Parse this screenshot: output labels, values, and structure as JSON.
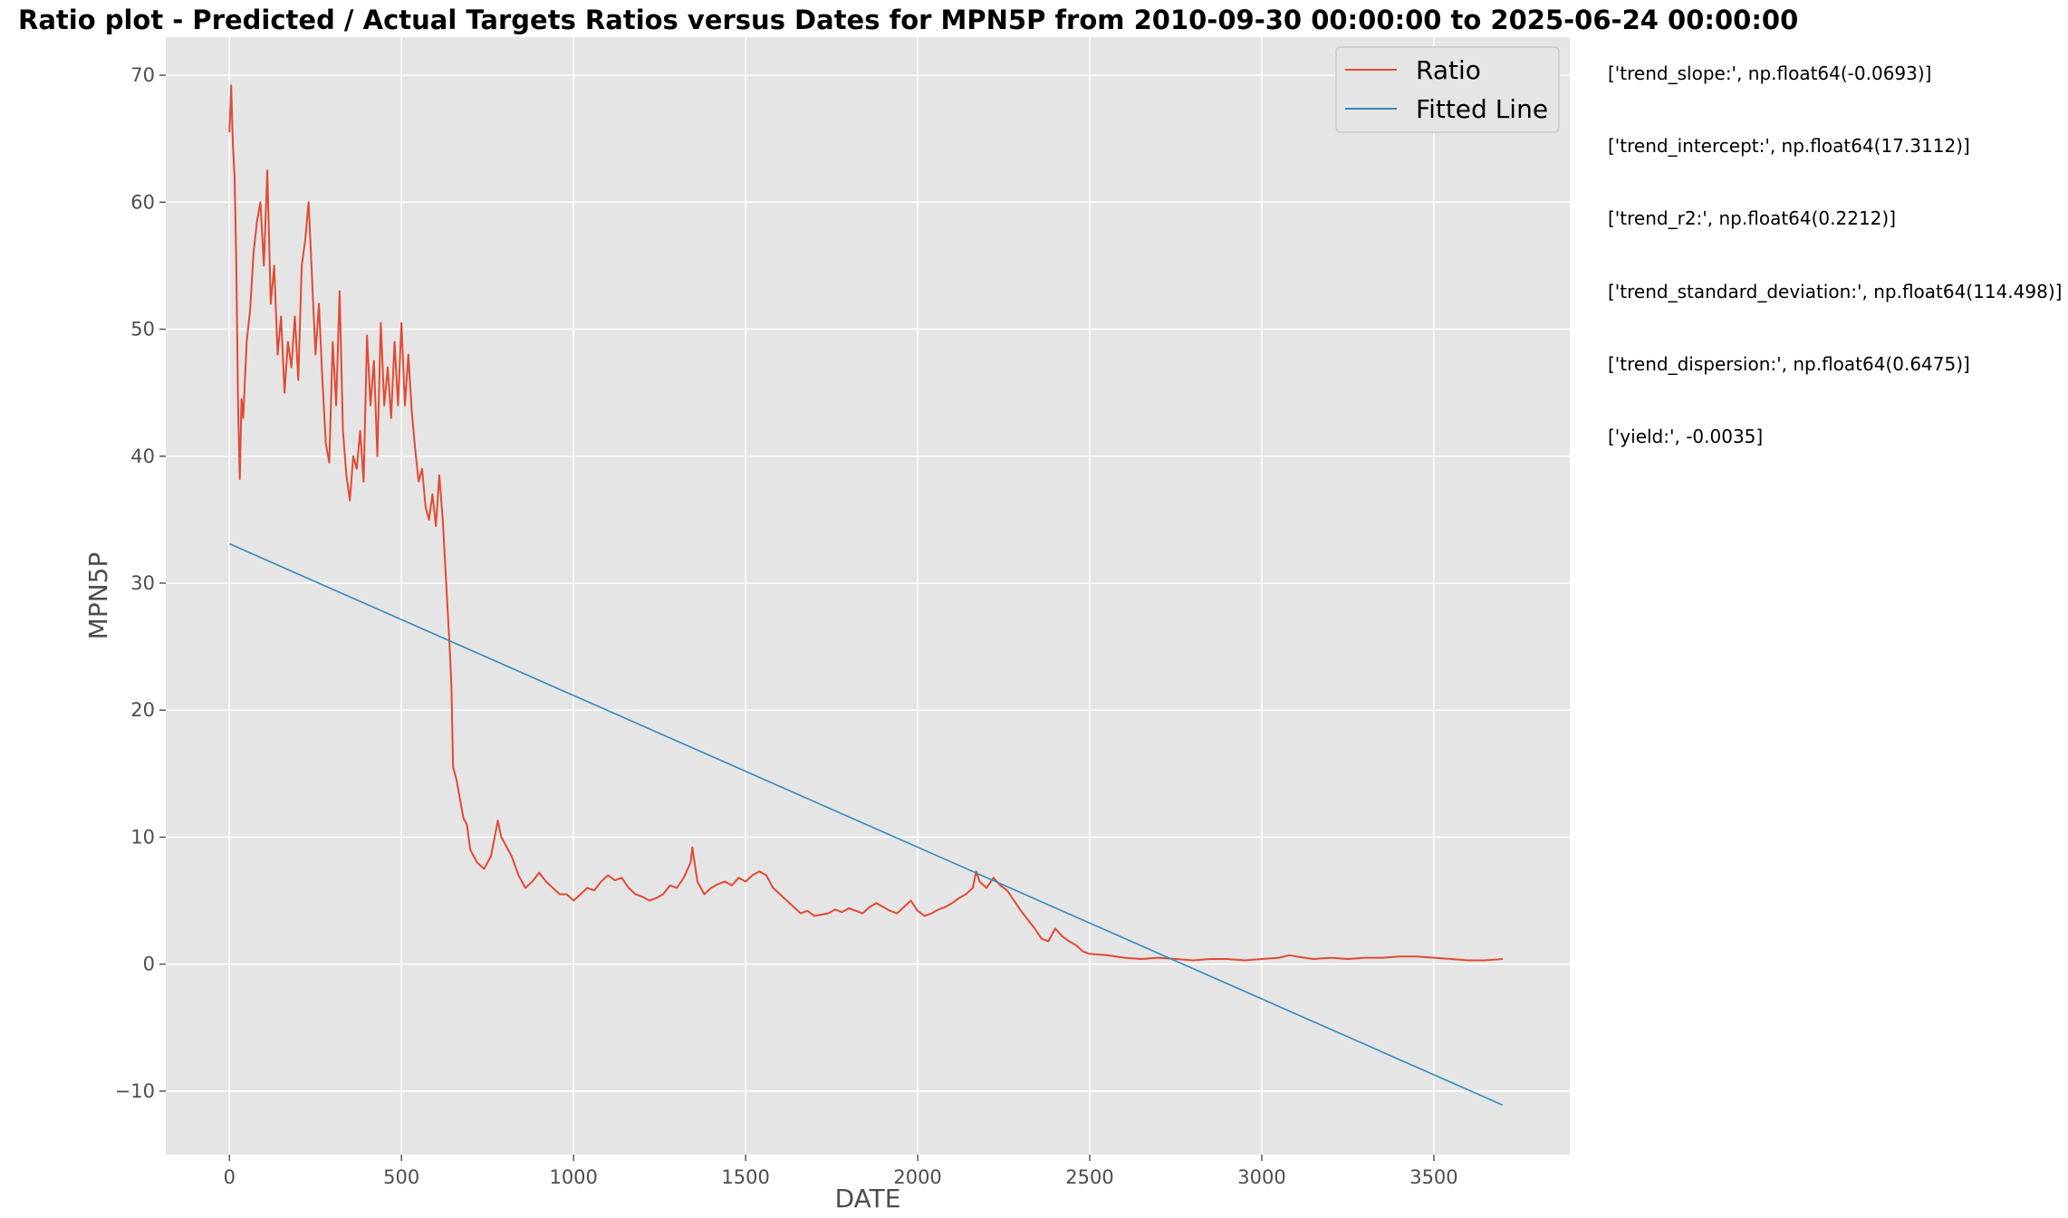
{
  "chart_data": {
    "type": "line",
    "title": "Ratio plot - Predicted / Actual Targets Ratios versus Dates for MPN5P from 2010-09-30 00:00:00 to 2025-06-24 00:00:00",
    "xlabel": "DATE",
    "ylabel": "MPN5P",
    "xlim": [
      -185,
      3895
    ],
    "ylim": [
      -15,
      73
    ],
    "xticks": [
      0,
      500,
      1000,
      1500,
      2000,
      2500,
      3000,
      3500
    ],
    "yticks": [
      -10,
      0,
      10,
      20,
      30,
      40,
      50,
      60,
      70
    ],
    "grid": true,
    "legend_position": "top-right",
    "series": [
      {
        "name": "Ratio",
        "color": "#e24a33",
        "x": [
          0,
          5,
          10,
          15,
          20,
          25,
          30,
          35,
          40,
          50,
          60,
          70,
          80,
          90,
          100,
          110,
          120,
          130,
          140,
          150,
          160,
          170,
          180,
          190,
          200,
          210,
          220,
          230,
          240,
          250,
          260,
          270,
          280,
          290,
          300,
          310,
          320,
          330,
          340,
          350,
          360,
          370,
          380,
          390,
          400,
          410,
          420,
          430,
          440,
          450,
          460,
          470,
          480,
          490,
          500,
          510,
          520,
          530,
          540,
          550,
          560,
          570,
          580,
          590,
          600,
          610,
          620,
          630,
          640,
          645,
          650,
          660,
          670,
          680,
          690,
          700,
          720,
          740,
          760,
          780,
          790,
          800,
          820,
          840,
          860,
          880,
          900,
          920,
          940,
          960,
          980,
          1000,
          1020,
          1040,
          1060,
          1080,
          1100,
          1120,
          1140,
          1160,
          1180,
          1200,
          1220,
          1240,
          1260,
          1280,
          1300,
          1320,
          1340,
          1345,
          1360,
          1380,
          1400,
          1420,
          1440,
          1460,
          1480,
          1500,
          1520,
          1540,
          1560,
          1580,
          1600,
          1620,
          1640,
          1660,
          1680,
          1700,
          1720,
          1740,
          1760,
          1780,
          1800,
          1820,
          1840,
          1860,
          1880,
          1900,
          1920,
          1940,
          1960,
          1980,
          2000,
          2020,
          2040,
          2060,
          2080,
          2100,
          2120,
          2140,
          2160,
          2170,
          2180,
          2200,
          2220,
          2240,
          2260,
          2280,
          2300,
          2320,
          2340,
          2360,
          2380,
          2400,
          2420,
          2440,
          2460,
          2480,
          2500,
          2550,
          2600,
          2650,
          2700,
          2750,
          2800,
          2850,
          2900,
          2950,
          3000,
          3050,
          3080,
          3100,
          3150,
          3200,
          3250,
          3300,
          3350,
          3400,
          3450,
          3500,
          3550,
          3600,
          3650,
          3700
        ],
        "values": [
          65.5,
          69.2,
          64.5,
          62.0,
          55.0,
          44.0,
          38.2,
          44.5,
          43.0,
          49.0,
          51.5,
          56.0,
          58.5,
          60.0,
          55.0,
          62.5,
          52.0,
          55.0,
          48.0,
          51.0,
          45.0,
          49.0,
          47.0,
          51.0,
          46.0,
          55.0,
          57.0,
          60.0,
          54.0,
          48.0,
          52.0,
          46.0,
          41.0,
          39.5,
          49.0,
          44.0,
          53.0,
          42.0,
          38.5,
          36.5,
          40.0,
          39.0,
          42.0,
          38.0,
          49.5,
          44.0,
          47.5,
          40.0,
          50.5,
          44.0,
          47.0,
          43.0,
          49.0,
          44.0,
          50.5,
          44.0,
          48.0,
          43.5,
          40.5,
          38.0,
          39.0,
          36.0,
          35.0,
          37.0,
          34.5,
          38.5,
          35.0,
          30.0,
          25.0,
          22.0,
          15.5,
          14.5,
          13.0,
          11.5,
          11.0,
          9.0,
          8.0,
          7.5,
          8.5,
          11.3,
          10.0,
          9.5,
          8.5,
          7.0,
          6.0,
          6.5,
          7.2,
          6.5,
          6.0,
          5.5,
          5.5,
          5.0,
          5.5,
          6.0,
          5.8,
          6.5,
          7.0,
          6.6,
          6.8,
          6.0,
          5.5,
          5.3,
          5.0,
          5.2,
          5.5,
          6.2,
          6.0,
          6.8,
          8.0,
          9.2,
          6.5,
          5.5,
          6.0,
          6.3,
          6.5,
          6.2,
          6.8,
          6.5,
          7.0,
          7.3,
          7.0,
          6.0,
          5.5,
          5.0,
          4.5,
          4.0,
          4.2,
          3.8,
          3.9,
          4.0,
          4.3,
          4.1,
          4.4,
          4.2,
          4.0,
          4.5,
          4.8,
          4.5,
          4.2,
          4.0,
          4.5,
          5.0,
          4.2,
          3.8,
          4.0,
          4.3,
          4.5,
          4.8,
          5.2,
          5.5,
          6.0,
          7.3,
          6.5,
          6.0,
          6.8,
          6.2,
          5.8,
          5.0,
          4.2,
          3.5,
          2.8,
          2.0,
          1.8,
          2.8,
          2.2,
          1.8,
          1.5,
          1.0,
          0.8,
          0.7,
          0.5,
          0.4,
          0.5,
          0.4,
          0.3,
          0.4,
          0.4,
          0.3,
          0.4,
          0.5,
          0.7,
          0.6,
          0.4,
          0.5,
          0.4,
          0.5,
          0.5,
          0.6,
          0.6,
          0.5,
          0.4,
          0.3,
          0.3,
          0.4
        ]
      },
      {
        "name": "Fitted Line",
        "color": "#348abd",
        "x": [
          0,
          3700
        ],
        "values": [
          33.1,
          -11.1
        ]
      }
    ],
    "annotations": [
      "['trend_slope:', np.float64(-0.0693)]",
      "['trend_intercept:', np.float64(17.3112)]",
      "['trend_r2:', np.float64(0.2212)]",
      "['trend_standard_deviation:', np.float64(114.498)]",
      "['trend_dispersion:', np.float64(0.6475)]",
      "['yield:', -0.0035]"
    ]
  }
}
